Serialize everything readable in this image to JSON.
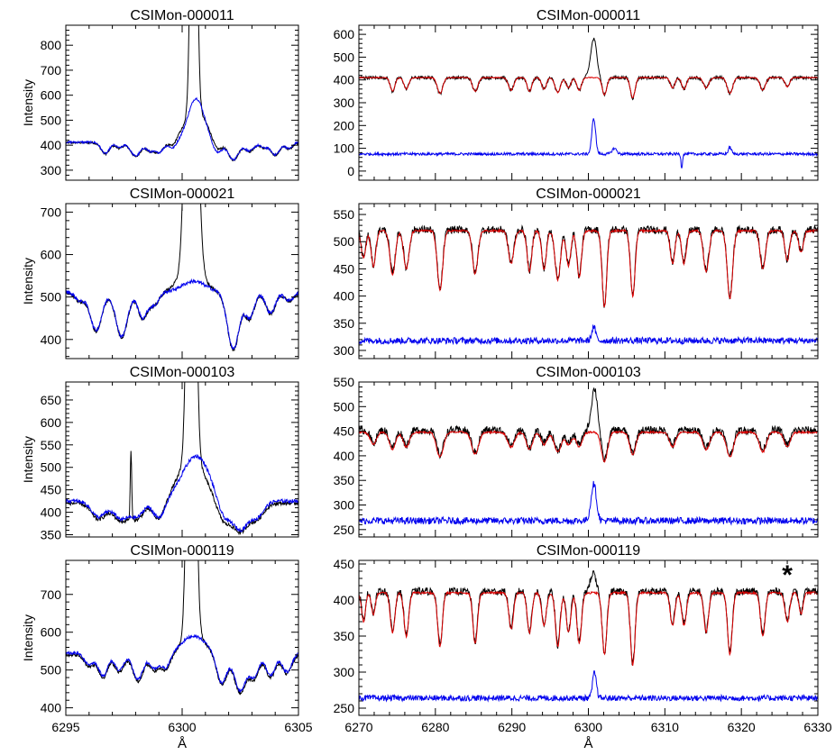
{
  "figure": {
    "xlabel": "Å",
    "ylabel": "Intensity",
    "star_marker": "*",
    "colors": {
      "observed": "#000000",
      "model": "#dd0000",
      "residual": "#0000ee",
      "axes": "#000000"
    }
  },
  "chart_data": [
    {
      "type": "line",
      "title": "CSIMon-000011",
      "xlim": [
        6295,
        6305
      ],
      "ylim": [
        260,
        880
      ],
      "xticks": [
        6295,
        6300,
        6305
      ],
      "yticks": [
        300,
        400,
        500,
        600,
        700,
        800
      ],
      "features": [
        [
          6296.7,
          -45,
          0.18
        ],
        [
          6297.3,
          -22,
          0.15
        ],
        [
          6298.0,
          -55,
          0.22
        ],
        [
          6298.6,
          -30,
          0.16
        ],
        [
          6299.0,
          -40,
          0.2
        ],
        [
          6299.6,
          -25,
          0.15
        ],
        [
          6301.5,
          -45,
          0.2
        ],
        [
          6302.2,
          -70,
          0.22
        ],
        [
          6302.9,
          -35,
          0.2
        ],
        [
          6303.5,
          -20,
          0.15
        ],
        [
          6304.0,
          -50,
          0.2
        ],
        [
          6304.6,
          -25,
          0.15
        ]
      ],
      "series": [
        {
          "color": "#000000",
          "base": 410,
          "noise": 4,
          "peaks": [
            [
              6300.5,
              1600,
              0.12
            ],
            [
              6300.6,
              120,
              0.5
            ]
          ]
        },
        {
          "color": "#0000ee",
          "base": 412,
          "noise": 4,
          "peaks": [
            [
              6300.6,
              175,
              0.35
            ]
          ]
        }
      ]
    },
    {
      "type": "line",
      "title": "CSIMon-000011",
      "xlim": [
        6270,
        6330
      ],
      "ylim": [
        -40,
        640
      ],
      "xticks": [
        6270,
        6280,
        6290,
        6300,
        6310,
        6320,
        6330
      ],
      "yticks": [
        0,
        100,
        200,
        300,
        400,
        500,
        600
      ],
      "features": [
        [
          6274.4,
          -60,
          0.3
        ],
        [
          6276.2,
          -50,
          0.3
        ],
        [
          6280.6,
          -70,
          0.35
        ],
        [
          6285.2,
          -60,
          0.35
        ],
        [
          6289.9,
          -55,
          0.35
        ],
        [
          6292.3,
          -60,
          0.3
        ],
        [
          6294.2,
          -50,
          0.3
        ],
        [
          6296.0,
          -65,
          0.35
        ],
        [
          6297.4,
          -45,
          0.3
        ],
        [
          6298.8,
          -55,
          0.3
        ],
        [
          6302.1,
          -75,
          0.3
        ],
        [
          6305.8,
          -90,
          0.3
        ],
        [
          6311.0,
          -45,
          0.3
        ],
        [
          6312.5,
          -50,
          0.3
        ],
        [
          6315.4,
          -45,
          0.35
        ],
        [
          6318.5,
          -70,
          0.35
        ],
        [
          6322.8,
          -55,
          0.35
        ],
        [
          6326.0,
          -40,
          0.3
        ]
      ],
      "series": [
        {
          "color": "#000000",
          "base": 410,
          "noise": 7,
          "peaks": [
            [
              6300.7,
              170,
              0.4
            ]
          ]
        },
        {
          "color": "#dd0000",
          "base": 410,
          "noise": 2,
          "peaks": []
        },
        {
          "color": "#0000ee",
          "base": 75,
          "noise": 6,
          "nofeat": true,
          "peaks": [
            [
              6300.7,
              155,
              0.25
            ],
            [
              6303.4,
              25,
              0.3
            ],
            [
              6312.2,
              -60,
              0.1
            ],
            [
              6318.5,
              30,
              0.2
            ]
          ]
        }
      ]
    },
    {
      "type": "line",
      "title": "CSIMon-000021",
      "xlim": [
        6295,
        6305
      ],
      "ylim": [
        355,
        720
      ],
      "xticks": [
        6295,
        6300,
        6305
      ],
      "yticks": [
        400,
        500,
        600,
        700
      ],
      "features": [
        [
          6295.6,
          -20,
          0.2
        ],
        [
          6296.3,
          -90,
          0.25
        ],
        [
          6297.4,
          -105,
          0.25
        ],
        [
          6298.3,
          -60,
          0.2
        ],
        [
          6298.8,
          -30,
          0.2
        ],
        [
          6302.2,
          -135,
          0.25
        ],
        [
          6302.9,
          -60,
          0.2
        ],
        [
          6303.8,
          -50,
          0.2
        ],
        [
          6304.6,
          -20,
          0.2
        ]
      ],
      "series": [
        {
          "color": "#000000",
          "base": 510,
          "noise": 4,
          "peaks": [
            [
              6300.4,
              1200,
              0.2
            ],
            [
              6300.4,
              60,
              0.5
            ]
          ]
        },
        {
          "color": "#0000ee",
          "base": 512,
          "noise": 4,
          "peaks": [
            [
              6300.5,
              25,
              0.5
            ]
          ]
        }
      ]
    },
    {
      "type": "line",
      "title": "CSIMon-000021",
      "xlim": [
        6270,
        6330
      ],
      "ylim": [
        285,
        570
      ],
      "xticks": [
        6270,
        6280,
        6290,
        6300,
        6310,
        6320,
        6330
      ],
      "yticks": [
        300,
        350,
        400,
        450,
        500,
        550
      ],
      "features": [
        [
          6270.6,
          -50,
          0.3
        ],
        [
          6271.9,
          -65,
          0.3
        ],
        [
          6274.4,
          -80,
          0.35
        ],
        [
          6276.2,
          -70,
          0.35
        ],
        [
          6280.6,
          -110,
          0.35
        ],
        [
          6285.2,
          -80,
          0.35
        ],
        [
          6289.9,
          -60,
          0.35
        ],
        [
          6292.3,
          -75,
          0.3
        ],
        [
          6294.2,
          -70,
          0.3
        ],
        [
          6296.0,
          -90,
          0.35
        ],
        [
          6297.4,
          -65,
          0.3
        ],
        [
          6298.8,
          -85,
          0.3
        ],
        [
          6302.1,
          -140,
          0.3
        ],
        [
          6305.8,
          -120,
          0.3
        ],
        [
          6311.0,
          -60,
          0.3
        ],
        [
          6312.5,
          -60,
          0.3
        ],
        [
          6315.4,
          -75,
          0.35
        ],
        [
          6318.5,
          -125,
          0.35
        ],
        [
          6322.8,
          -70,
          0.35
        ],
        [
          6326.0,
          -55,
          0.3
        ],
        [
          6327.8,
          -40,
          0.3
        ]
      ],
      "series": [
        {
          "color": "#000000",
          "base": 522,
          "noise": 7,
          "peaks": []
        },
        {
          "color": "#dd0000",
          "base": 520,
          "noise": 2,
          "peaks": []
        },
        {
          "color": "#0000ee",
          "base": 318,
          "noise": 6,
          "nofeat": true,
          "peaks": [
            [
              6300.7,
              25,
              0.25
            ]
          ]
        }
      ]
    },
    {
      "type": "line",
      "title": "CSIMon-000103",
      "xlim": [
        6295,
        6305
      ],
      "ylim": [
        345,
        690
      ],
      "xticks": [
        6295,
        6300,
        6305
      ],
      "yticks": [
        350,
        400,
        450,
        500,
        550,
        600,
        650
      ],
      "features": [
        [
          6296.4,
          -35,
          0.3
        ],
        [
          6297.4,
          -40,
          0.35
        ],
        [
          6298.1,
          -30,
          0.25
        ],
        [
          6299.0,
          -40,
          0.25
        ],
        [
          6301.8,
          -45,
          0.3
        ],
        [
          6302.5,
          -60,
          0.3
        ],
        [
          6303.2,
          -35,
          0.3
        ]
      ],
      "series": [
        {
          "color": "#000000",
          "base": 420,
          "noise": 4,
          "peaks": [
            [
              6297.8,
              150,
              0.03
            ],
            [
              6300.4,
              1200,
              0.15
            ],
            [
              6300.4,
              95,
              0.6
            ]
          ]
        },
        {
          "color": "#0000ee",
          "base": 425,
          "noise": 4,
          "peaks": [
            [
              6300.6,
              100,
              0.6
            ]
          ]
        }
      ]
    },
    {
      "type": "line",
      "title": "CSIMon-000103",
      "xlim": [
        6270,
        6330
      ],
      "ylim": [
        235,
        550
      ],
      "xticks": [
        6270,
        6280,
        6290,
        6300,
        6310,
        6320,
        6330
      ],
      "yticks": [
        250,
        300,
        350,
        400,
        450,
        500,
        550
      ],
      "features": [
        [
          6271.9,
          -25,
          0.4
        ],
        [
          6274.4,
          -35,
          0.4
        ],
        [
          6276.2,
          -30,
          0.4
        ],
        [
          6280.6,
          -50,
          0.45
        ],
        [
          6285.2,
          -45,
          0.45
        ],
        [
          6289.9,
          -30,
          0.45
        ],
        [
          6292.3,
          -35,
          0.4
        ],
        [
          6294.2,
          -25,
          0.4
        ],
        [
          6296.0,
          -40,
          0.45
        ],
        [
          6297.4,
          -25,
          0.4
        ],
        [
          6298.8,
          -30,
          0.4
        ],
        [
          6302.1,
          -60,
          0.4
        ],
        [
          6305.8,
          -45,
          0.4
        ],
        [
          6311.0,
          -30,
          0.4
        ],
        [
          6315.4,
          -35,
          0.45
        ],
        [
          6318.5,
          -50,
          0.45
        ],
        [
          6322.8,
          -40,
          0.45
        ],
        [
          6326.0,
          -30,
          0.4
        ]
      ],
      "series": [
        {
          "color": "#000000",
          "base": 452,
          "noise": 8,
          "peaks": [
            [
              6300.8,
              85,
              0.4
            ]
          ]
        },
        {
          "color": "#dd0000",
          "base": 448,
          "noise": 2,
          "peaks": []
        },
        {
          "color": "#0000ee",
          "base": 268,
          "noise": 7,
          "nofeat": true,
          "peaks": [
            [
              6300.7,
              75,
              0.35
            ]
          ]
        }
      ]
    },
    {
      "type": "line",
      "title": "CSIMon-000119",
      "xlim": [
        6295,
        6305
      ],
      "ylim": [
        380,
        790
      ],
      "xticks": [
        6295,
        6300,
        6305
      ],
      "yticks": [
        400,
        500,
        600,
        700
      ],
      "features": [
        [
          6296.0,
          -30,
          0.2
        ],
        [
          6296.6,
          -60,
          0.2
        ],
        [
          6297.3,
          -45,
          0.2
        ],
        [
          6298.1,
          -70,
          0.22
        ],
        [
          6298.8,
          -40,
          0.2
        ],
        [
          6299.3,
          -40,
          0.2
        ],
        [
          6301.7,
          -80,
          0.22
        ],
        [
          6302.5,
          -100,
          0.25
        ],
        [
          6303.1,
          -60,
          0.2
        ],
        [
          6303.8,
          -60,
          0.2
        ],
        [
          6304.5,
          -50,
          0.2
        ]
      ],
      "series": [
        {
          "color": "#000000",
          "base": 540,
          "noise": 4,
          "peaks": [
            [
              6300.4,
              1400,
              0.15
            ],
            [
              6300.5,
              50,
              0.5
            ]
          ]
        },
        {
          "color": "#0000ee",
          "base": 545,
          "noise": 4,
          "peaks": [
            [
              6300.5,
              45,
              0.5
            ]
          ]
        }
      ]
    },
    {
      "type": "line",
      "title": "CSIMon-000119",
      "xlim": [
        6270,
        6330
      ],
      "ylim": [
        240,
        455
      ],
      "xticks": [
        6270,
        6280,
        6290,
        6300,
        6310,
        6320,
        6330
      ],
      "yticks": [
        250,
        300,
        350,
        400,
        450
      ],
      "features": [
        [
          6270.6,
          -40,
          0.25
        ],
        [
          6271.9,
          -30,
          0.25
        ],
        [
          6274.4,
          -55,
          0.3
        ],
        [
          6276.2,
          -60,
          0.3
        ],
        [
          6280.6,
          -75,
          0.3
        ],
        [
          6285.2,
          -70,
          0.3
        ],
        [
          6289.9,
          -50,
          0.3
        ],
        [
          6292.3,
          -55,
          0.3
        ],
        [
          6294.2,
          -45,
          0.3
        ],
        [
          6296.0,
          -75,
          0.3
        ],
        [
          6297.4,
          -55,
          0.3
        ],
        [
          6298.8,
          -70,
          0.3
        ],
        [
          6302.1,
          -85,
          0.3
        ],
        [
          6305.8,
          -100,
          0.3
        ],
        [
          6311.0,
          -45,
          0.3
        ],
        [
          6312.5,
          -45,
          0.3
        ],
        [
          6315.4,
          -55,
          0.3
        ],
        [
          6318.5,
          -85,
          0.3
        ],
        [
          6322.8,
          -60,
          0.3
        ],
        [
          6326.0,
          -40,
          0.3
        ],
        [
          6327.8,
          -30,
          0.25
        ]
      ],
      "series": [
        {
          "color": "#000000",
          "base": 412,
          "noise": 5,
          "peaks": [
            [
              6300.6,
              25,
              0.35
            ]
          ]
        },
        {
          "color": "#dd0000",
          "base": 410,
          "noise": 1.5,
          "peaks": []
        },
        {
          "color": "#0000ee",
          "base": 264,
          "noise": 4,
          "nofeat": true,
          "peaks": [
            [
              6300.8,
              35,
              0.25
            ]
          ]
        }
      ]
    }
  ]
}
